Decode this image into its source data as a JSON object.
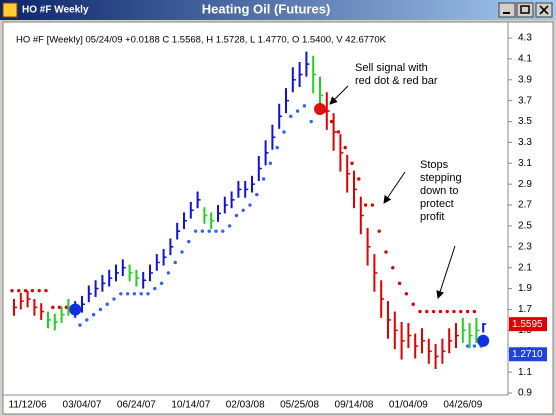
{
  "window": {
    "title": "HO #F Weekly"
  },
  "chart_data": {
    "type": "ohlc",
    "title": "Heating Oil (Futures)",
    "info": "HO #F [Weekly] 05/24/09 +0.0188 C 1.5568, H 1.5728, L 1.4770, O 1.5400, V 42.6770K",
    "categories": [
      null,
      null,
      "11/12/06",
      null,
      null,
      null,
      null,
      null,
      null,
      null,
      "03/04/07",
      null,
      null,
      null,
      null,
      null,
      null,
      null,
      "06/24/07",
      null,
      null,
      null,
      null,
      null,
      null,
      null,
      "10/14/07",
      null,
      null,
      null,
      null,
      null,
      null,
      null,
      "02/03/08",
      null,
      null,
      null,
      null,
      null,
      null,
      null,
      "05/25/08",
      null,
      null,
      null,
      null,
      null,
      null,
      null,
      "09/14/08",
      null,
      null,
      null,
      null,
      null,
      null,
      null,
      "01/04/09",
      null,
      null,
      null,
      null,
      null,
      null,
      null,
      "04/26/09",
      null,
      null,
      null
    ],
    "close": [
      1.72,
      1.78,
      1.8,
      1.72,
      1.68,
      1.6,
      1.58,
      1.65,
      1.72,
      1.7,
      1.75,
      1.85,
      1.9,
      1.95,
      2.0,
      2.05,
      2.1,
      2.05,
      2.0,
      1.98,
      2.05,
      2.15,
      2.2,
      2.3,
      2.45,
      2.55,
      2.65,
      2.75,
      2.6,
      2.55,
      2.62,
      2.7,
      2.75,
      2.85,
      2.85,
      2.9,
      3.05,
      3.2,
      3.35,
      3.55,
      3.7,
      3.9,
      3.95,
      4.05,
      3.95,
      3.75,
      3.6,
      3.4,
      3.2,
      3.0,
      2.85,
      2.6,
      2.3,
      2.05,
      1.8,
      1.6,
      1.5,
      1.4,
      1.45,
      1.35,
      1.4,
      1.3,
      1.25,
      1.3,
      1.4,
      1.45,
      1.5,
      1.45,
      1.5,
      1.56
    ],
    "high": [
      1.8,
      1.86,
      1.88,
      1.8,
      1.76,
      1.68,
      1.66,
      1.73,
      1.8,
      1.78,
      1.83,
      1.93,
      1.98,
      2.03,
      2.08,
      2.13,
      2.18,
      2.13,
      2.08,
      2.06,
      2.13,
      2.23,
      2.28,
      2.38,
      2.53,
      2.63,
      2.73,
      2.83,
      2.68,
      2.63,
      2.7,
      2.78,
      2.83,
      2.93,
      2.93,
      2.98,
      3.17,
      3.32,
      3.47,
      3.67,
      3.82,
      4.02,
      4.07,
      4.17,
      4.13,
      3.93,
      3.78,
      3.58,
      3.38,
      3.18,
      3.03,
      2.78,
      2.48,
      2.23,
      1.98,
      1.78,
      1.68,
      1.58,
      1.57,
      1.47,
      1.52,
      1.42,
      1.37,
      1.42,
      1.52,
      1.57,
      1.62,
      1.57,
      1.62,
      1.57
    ],
    "low": [
      1.64,
      1.7,
      1.72,
      1.64,
      1.6,
      1.52,
      1.5,
      1.57,
      1.64,
      1.62,
      1.67,
      1.77,
      1.82,
      1.87,
      1.92,
      1.97,
      2.02,
      1.97,
      1.92,
      1.9,
      1.97,
      2.07,
      2.12,
      2.22,
      2.37,
      2.47,
      2.57,
      2.67,
      2.52,
      2.47,
      2.54,
      2.62,
      2.67,
      2.77,
      2.77,
      2.82,
      2.93,
      3.08,
      3.23,
      3.43,
      3.58,
      3.78,
      3.83,
      3.93,
      3.77,
      3.57,
      3.42,
      3.22,
      3.02,
      2.82,
      2.67,
      2.42,
      2.12,
      1.87,
      1.62,
      1.42,
      1.32,
      1.22,
      1.33,
      1.23,
      1.28,
      1.18,
      1.13,
      1.18,
      1.28,
      1.33,
      1.38,
      1.33,
      1.38,
      1.48
    ],
    "bar_color": [
      "#e00000",
      "#e00000",
      "#e00000",
      "#e00000",
      "#e00000",
      "#20d020",
      "#20d020",
      "#20d020",
      "#20d020",
      "#1010e0",
      "#1010e0",
      "#1010e0",
      "#1010e0",
      "#1010e0",
      "#1010e0",
      "#1010e0",
      "#1010e0",
      "#20d020",
      "#20d020",
      "#1010e0",
      "#1010e0",
      "#1010e0",
      "#1010e0",
      "#1010e0",
      "#1010e0",
      "#1010e0",
      "#1010e0",
      "#1010e0",
      "#20d020",
      "#20d020",
      "#1010e0",
      "#1010e0",
      "#1010e0",
      "#1010e0",
      "#1010e0",
      "#1010e0",
      "#1010e0",
      "#1010e0",
      "#1010e0",
      "#1010e0",
      "#1010e0",
      "#1010e0",
      "#1010e0",
      "#1010e0",
      "#20d020",
      "#20d020",
      "#e00000",
      "#e00000",
      "#e00000",
      "#e00000",
      "#e00000",
      "#e00000",
      "#e00000",
      "#e00000",
      "#e00000",
      "#e00000",
      "#e00000",
      "#e00000",
      "#e00000",
      "#e00000",
      "#e00000",
      "#e00000",
      "#e00000",
      "#e00000",
      "#e00000",
      "#e00000",
      "#20d020",
      "#20d020",
      "#20d020",
      "#1010e0"
    ],
    "stop_above": [
      1.88,
      1.88,
      1.88,
      1.88,
      1.88,
      1.88,
      1.72,
      1.72,
      1.72,
      1.72,
      null,
      null,
      null,
      null,
      null,
      null,
      null,
      null,
      null,
      null,
      null,
      null,
      null,
      null,
      null,
      null,
      null,
      null,
      null,
      null,
      null,
      null,
      null,
      null,
      null,
      null,
      null,
      null,
      null,
      null,
      null,
      null,
      null,
      null,
      null,
      null,
      3.6,
      3.5,
      3.4,
      3.25,
      3.1,
      2.95,
      2.7,
      2.7,
      2.45,
      2.25,
      2.1,
      1.95,
      1.85,
      1.75,
      1.68,
      1.68,
      1.68,
      1.68,
      1.68,
      1.68,
      1.68,
      1.68,
      1.68,
      null
    ],
    "stop_below": [
      null,
      null,
      null,
      null,
      null,
      null,
      null,
      null,
      null,
      null,
      1.55,
      1.6,
      1.65,
      1.7,
      1.75,
      1.8,
      1.85,
      1.85,
      1.85,
      1.85,
      1.85,
      1.9,
      1.95,
      2.05,
      2.15,
      2.25,
      2.35,
      2.45,
      2.45,
      2.45,
      2.45,
      2.45,
      2.5,
      2.6,
      2.65,
      2.7,
      2.8,
      2.95,
      3.1,
      3.25,
      3.4,
      3.55,
      3.6,
      3.65,
      3.5,
      null,
      null,
      null,
      null,
      null,
      null,
      null,
      null,
      null,
      null,
      null,
      null,
      null,
      null,
      null,
      null,
      null,
      null,
      null,
      null,
      null,
      null,
      1.35,
      1.35,
      1.35
    ],
    "stop_above_color": "#e00000",
    "stop_below_color": "#3060ff",
    "signals": [
      {
        "bar": 9,
        "value": 1.7,
        "color": "#1030e0"
      },
      {
        "bar": 45,
        "value": 3.62,
        "color": "#e01010"
      },
      {
        "bar": 69,
        "value": 1.4,
        "color": "#1030e0"
      }
    ],
    "price_labels": [
      {
        "value": 1.5595,
        "color": "#e00000"
      },
      {
        "value": {
          "value": 1.271,
          "label": "1.2710"
        },
        "color": "#2040e0"
      }
    ],
    "ylim": [
      0.9,
      4.3
    ],
    "yticks": [
      4.3,
      4.1,
      3.9,
      3.7,
      3.5,
      3.3,
      3.1,
      2.9,
      2.7,
      2.5,
      2.3,
      2.1,
      1.9,
      1.7,
      1.5,
      1.3,
      1.1,
      0.9
    ],
    "annotations": [
      {
        "lines": [
          "Sell signal with",
          "red dot & red bar"
        ]
      },
      {
        "lines": [
          "Stops",
          "stepping",
          "down to",
          "protect",
          "profit"
        ]
      }
    ]
  }
}
